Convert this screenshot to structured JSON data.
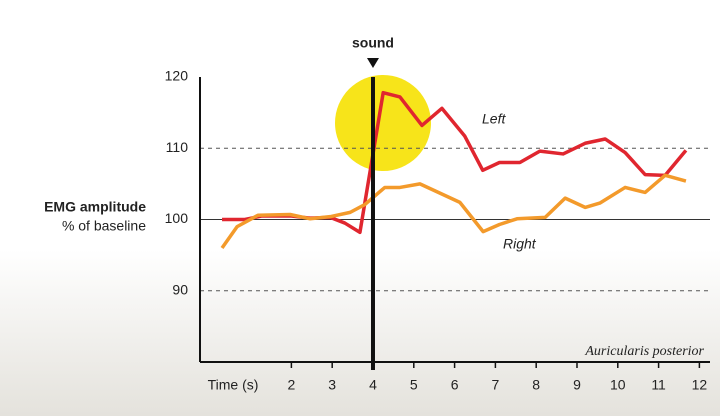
{
  "chart_data": {
    "type": "line",
    "y_label": "EMG amplitude",
    "y_sublabel": "% of baseline",
    "x_label": "Time (s)",
    "caption": "Auricularis posterior",
    "annotation": {
      "text": "sound",
      "x": 4
    },
    "xlim": [
      -0.24,
      12.26
    ],
    "xticks": [
      2,
      3,
      4,
      5,
      6,
      7,
      8,
      9,
      10,
      11,
      12
    ],
    "ylim": [
      80,
      120
    ],
    "yticks": [
      90,
      100,
      110,
      120
    ],
    "baseline": 100,
    "grid": true,
    "series": [
      {
        "name": "Left",
        "color": "#e0262f",
        "x": [
          0.3,
          0.86,
          1.28,
          1.97,
          2.46,
          2.95,
          3.31,
          3.68,
          4.25,
          4.66,
          5.2,
          5.69,
          6.25,
          6.69,
          7.1,
          7.6,
          8.09,
          8.66,
          9.2,
          9.69,
          10.18,
          10.67,
          11.16,
          11.67
        ],
        "values": [
          100,
          100,
          100.5,
          100.5,
          100.2,
          100.3,
          99.5,
          98.2,
          117.8,
          117.2,
          113.2,
          115.6,
          111.7,
          106.9,
          108,
          108,
          109.6,
          109.2,
          110.7,
          111.3,
          109.4,
          106.3,
          106.2,
          109.7
        ]
      },
      {
        "name": "Right",
        "color": "#f39a2b",
        "x": [
          0.3,
          0.67,
          1.18,
          1.97,
          2.46,
          2.95,
          3.44,
          3.8,
          4.29,
          4.66,
          5.15,
          5.64,
          6.13,
          6.7,
          7.1,
          7.53,
          8.22,
          8.71,
          9.2,
          9.56,
          10.18,
          10.67,
          11.16,
          11.67
        ],
        "values": [
          96,
          99,
          100.6,
          100.7,
          100.1,
          100.4,
          101,
          102.1,
          104.5,
          104.5,
          105,
          103.7,
          102.4,
          98.3,
          99.3,
          100.1,
          100.3,
          103,
          101.7,
          102.3,
          104.5,
          103.8,
          106.2,
          105.4
        ]
      }
    ]
  }
}
